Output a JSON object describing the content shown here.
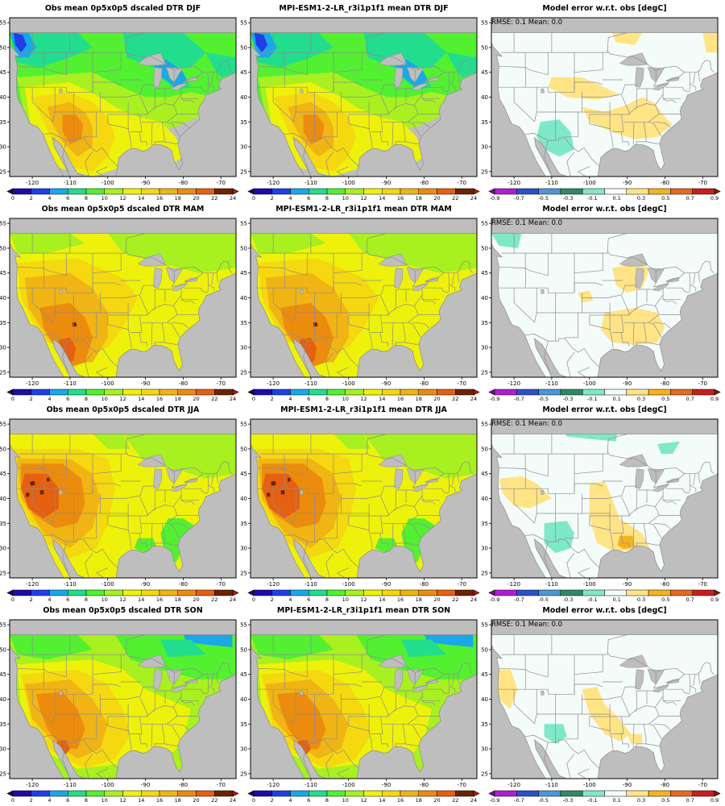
{
  "figure": {
    "rows": [
      {
        "season": "DJF",
        "obs_title": "Obs mean 0p5x0p5 dscaled DTR DJF",
        "model_title": "MPI-ESM1-2-LR_r3i1p1f1 mean DTR DJF",
        "error_title": "Model error w.r.t. obs [degC]",
        "stats": "RMSE: 0.1   Mean: 0.0"
      },
      {
        "season": "MAM",
        "obs_title": "Obs mean 0p5x0p5 dscaled DTR MAM",
        "model_title": "MPI-ESM1-2-LR_r3i1p1f1 mean DTR MAM",
        "error_title": "Model error w.r.t. obs [degC]",
        "stats": "RMSE: 0.1   Mean: 0.0"
      },
      {
        "season": "JJA",
        "obs_title": "Obs mean 0p5x0p5 dscaled DTR JJA",
        "model_title": "MPI-ESM1-2-LR_r3i1p1f1 mean DTR JJA",
        "error_title": "Model error w.r.t. obs [degC]",
        "stats": "RMSE: 0.1   Mean: 0.0"
      },
      {
        "season": "SON",
        "obs_title": "Obs mean 0p5x0p5 dscaled DTR SON",
        "model_title": "MPI-ESM1-2-LR_r3i1p1f1 mean DTR SON",
        "error_title": "Model error w.r.t. obs [degC]",
        "stats": "RMSE: 0.1   Mean: 0.0"
      }
    ],
    "map_axes": {
      "lon_ticks": [
        "-120",
        "-110",
        "-100",
        "-90",
        "-80",
        "-70"
      ],
      "lat_ticks": [
        "55",
        "50",
        "45",
        "40",
        "35",
        "30",
        "25"
      ]
    },
    "dtr_colorbar": {
      "labels": [
        "0",
        "2",
        "4",
        "6",
        "8",
        "10",
        "12",
        "14",
        "16",
        "18",
        "20",
        "22",
        "24"
      ],
      "colors": [
        "#2a0050",
        "#1c0ca8",
        "#1f3fe8",
        "#19a8e8",
        "#22dd8e",
        "#52f030",
        "#a8f020",
        "#eef20a",
        "#f5d810",
        "#f0b414",
        "#ec8c0e",
        "#e56010",
        "#6a2400",
        "#c0140a"
      ]
    },
    "error_colorbar": {
      "labels": [
        "-0.9",
        "-0.7",
        "-0.5",
        "-0.3",
        "-0.1",
        "0.1",
        "0.3",
        "0.5",
        "0.7",
        "0.9"
      ],
      "colors": [
        "#7a0aa0",
        "#b01ed0",
        "#2c50c8",
        "#4a98d8",
        "#2e8a62",
        "#7fe8c8",
        "#f4fcfa",
        "#ffe486",
        "#f6b21e",
        "#e26a22",
        "#c81e1e",
        "#7a2406"
      ]
    },
    "colors": {
      "missing_gray": "#bebebe",
      "border_gray": "#8c8c8c"
    }
  }
}
